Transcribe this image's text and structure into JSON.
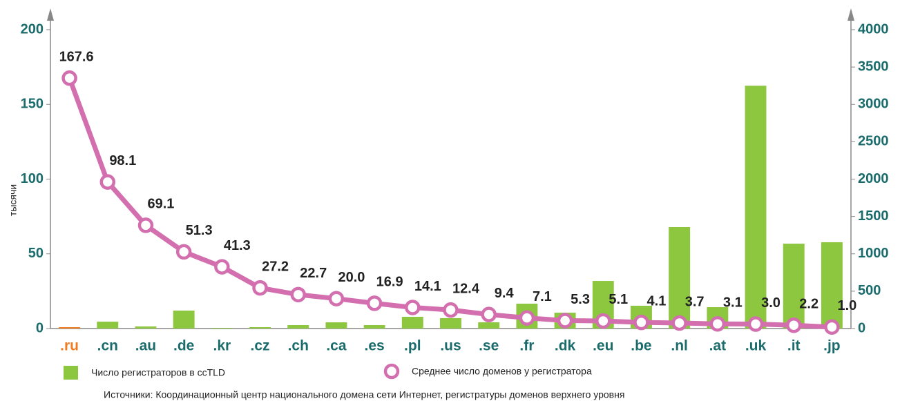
{
  "chart_data": {
    "type": "bar_line",
    "ylabel": "тысячи",
    "categories": [
      ".ru",
      ".cn",
      ".au",
      ".de",
      ".kr",
      ".cz",
      ".ch",
      ".ca",
      ".es",
      ".pl",
      ".us",
      ".se",
      ".fr",
      ".dk",
      ".eu",
      ".be",
      ".nl",
      ".at",
      ".uk",
      ".it",
      ".jp"
    ],
    "highlight_index": 0,
    "highlight_color": "#f07b22",
    "series": [
      {
        "name": "Число регистраторов в ccTLD",
        "type": "bar",
        "axis": "y2",
        "color": "#8dc63f",
        "values": [
          18,
          92,
          28,
          240,
          9,
          18,
          46,
          83,
          46,
          157,
          139,
          83,
          333,
          212,
          637,
          305,
          1358,
          286,
          3250,
          1136,
          1155
        ]
      },
      {
        "name": "Среднее число доменов у регистратора",
        "type": "line",
        "axis": "y",
        "color": "#d36fae",
        "values": [
          167.6,
          98.1,
          69.1,
          51.3,
          41.3,
          27.2,
          22.7,
          20.0,
          16.9,
          14.1,
          12.4,
          9.4,
          7.1,
          5.3,
          5.1,
          4.1,
          3.7,
          3.1,
          3.0,
          2.2,
          1.0
        ],
        "value_labels": [
          "167.6",
          "98.1",
          "69.1",
          "51.3",
          "41.3",
          "27.2",
          "22.7",
          "20.0",
          "16.9",
          "14.1",
          "12.4",
          "9.4",
          "7.1",
          "5.3",
          "5.1",
          "4.1",
          "3.7",
          "3.1",
          "3.0",
          "2.2",
          "1.0"
        ]
      }
    ],
    "ylim": [
      0,
      200
    ],
    "yticks": [
      0,
      50,
      100,
      150,
      200
    ],
    "y2lim": [
      0,
      4000
    ],
    "y2ticks": [
      0,
      500,
      1000,
      1500,
      2000,
      2500,
      3000,
      3500,
      4000
    ],
    "note": "Источники: Координационный центр национального домена сети Интернет, регистратуры доменов верхнего уровня"
  }
}
